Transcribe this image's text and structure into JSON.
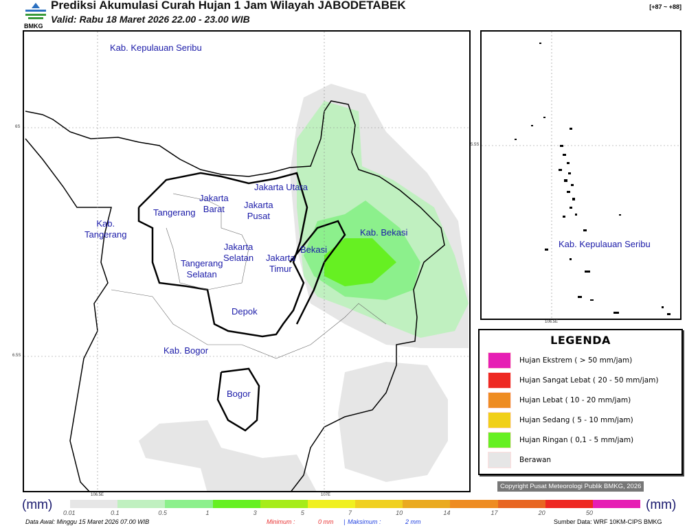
{
  "header": {
    "title": "Prediksi Akumulasi Curah Hujan 1 Jam Wilayah JABODETABEK",
    "valid": "Valid: Rabu 18 Maret 2026 22.00 - 23.00 WIB",
    "range": "[+87 ~ +88]",
    "logo_text": "BMKG"
  },
  "map": {
    "regions": [
      {
        "name": "Kab. Kepulauan Seribu"
      },
      {
        "name": "Jakarta Utara"
      },
      {
        "name": "Jakarta\nBarat"
      },
      {
        "name": "Jakarta\nPusat"
      },
      {
        "name": "Tangerang"
      },
      {
        "name": "Kab.\nTangerang"
      },
      {
        "name": "Jakarta\nSelatan"
      },
      {
        "name": "Jakarta\nTimur"
      },
      {
        "name": "Bekasi"
      },
      {
        "name": "Kab. Bekasi"
      },
      {
        "name": "Tangerang\nSelatan"
      },
      {
        "name": "Depok"
      },
      {
        "name": "Kab. Bogor"
      },
      {
        "name": "Bogor"
      }
    ],
    "ticks": {
      "lon1": "106.5E",
      "lon2": "107E",
      "lat1": "6S",
      "lat2": "6.5S"
    }
  },
  "inset": {
    "label": "Kab. Kepulauan Seribu",
    "lat": "5.5S",
    "lon": "106.5E"
  },
  "legend": {
    "title": "LEGENDA",
    "items": [
      {
        "label": "Hujan Ekstrem ( > 50 mm/jam)",
        "color": "#e61eb4"
      },
      {
        "label": "Hujan Sangat Lebat ( 20 - 50 mm/jam)",
        "color": "#ee2822"
      },
      {
        "label": "Hujan Lebat ( 10 - 20 mm/jam)",
        "color": "#ee8c22"
      },
      {
        "label": "Hujan Sedang ( 5 - 10 mm/jam)",
        "color": "#f0d018"
      },
      {
        "label": "Hujan Ringan ( 0,1 - 5 mm/jam)",
        "color": "#66f022"
      },
      {
        "label": "Berawan",
        "color": "#e6e6e6"
      }
    ]
  },
  "copyright": "Copyright Pusat Meteorologi Publik BMKG, 2026",
  "colorbar": {
    "unit": "(mm)",
    "labels": [
      "0.01",
      "0.1",
      "0.5",
      "1",
      "3",
      "5",
      "7",
      "10",
      "14",
      "17",
      "20",
      "50"
    ],
    "colors": [
      "#e6e6e6",
      "#c0f0c0",
      "#8cf08c",
      "#66f022",
      "#a6ec1a",
      "#f0f020",
      "#f0d020",
      "#eaaa20",
      "#ee8c22",
      "#e86622",
      "#ee2822",
      "#e61eb4"
    ]
  },
  "footer": {
    "data_awal": "Data Awal: Minggu 15 Maret 2026 07.00 WIB",
    "min_label": "Minimum :",
    "min_value": "0 mm",
    "sep": "|",
    "max_label": "Maksimum :",
    "max_value": "2 mm",
    "source": "Sumber Data: WRF 10KM-CIPS BMKG"
  }
}
